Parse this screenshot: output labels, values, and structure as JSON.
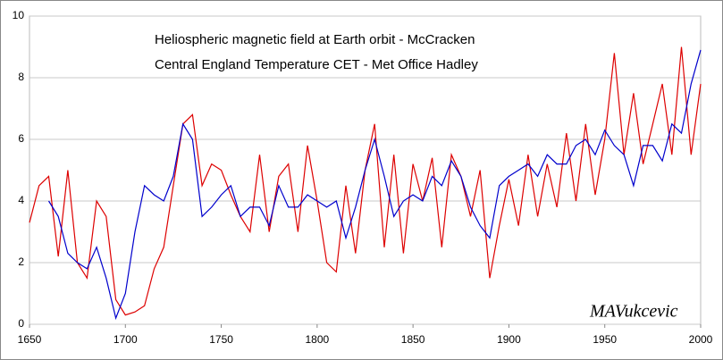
{
  "chart_data": {
    "type": "line",
    "annotations": [
      "Heliospheric magnetic  field at Earth orbit - McCracken",
      "Central England Temperature  CET - Met Office Hadley",
      "MAVukcevic"
    ],
    "x": [
      1650,
      1655,
      1660,
      1665,
      1670,
      1675,
      1680,
      1685,
      1690,
      1695,
      1700,
      1705,
      1710,
      1715,
      1720,
      1725,
      1730,
      1735,
      1740,
      1745,
      1750,
      1755,
      1760,
      1765,
      1770,
      1775,
      1780,
      1785,
      1790,
      1795,
      1800,
      1805,
      1810,
      1815,
      1820,
      1825,
      1830,
      1835,
      1840,
      1845,
      1850,
      1855,
      1860,
      1865,
      1870,
      1875,
      1880,
      1885,
      1890,
      1895,
      1900,
      1905,
      1910,
      1915,
      1920,
      1925,
      1930,
      1935,
      1940,
      1945,
      1950,
      1955,
      1960,
      1965,
      1970,
      1975,
      1980,
      1985,
      1990,
      1995,
      2000
    ],
    "series": [
      {
        "name": "Heliospheric magnetic  field at Earth orbit - McCracken",
        "color": "#dd0000",
        "values": [
          3.3,
          4.5,
          4.8,
          2.2,
          5.0,
          2.0,
          1.5,
          4.0,
          3.5,
          0.8,
          0.3,
          0.4,
          0.6,
          1.8,
          2.5,
          4.5,
          6.5,
          6.8,
          4.5,
          5.2,
          5.0,
          4.2,
          3.5,
          3.0,
          5.5,
          3.0,
          4.8,
          5.2,
          3.0,
          5.8,
          4.0,
          2.0,
          1.7,
          4.5,
          2.3,
          5.0,
          6.5,
          2.5,
          5.5,
          2.3,
          5.2,
          4.0,
          5.4,
          2.5,
          5.5,
          4.8,
          3.5,
          5.0,
          1.5,
          3.2,
          4.7,
          3.2,
          5.5,
          3.5,
          5.2,
          3.8,
          6.2,
          4.0,
          6.5,
          4.2,
          6.0,
          8.8,
          5.5,
          7.5,
          5.2,
          6.5,
          7.8,
          5.5,
          9.0,
          5.5,
          7.8
        ]
      },
      {
        "name": "Central England Temperature  CET - Met Office Hadley",
        "color": "#0000cc",
        "values": [
          null,
          null,
          4.0,
          3.5,
          2.3,
          2.0,
          1.8,
          2.5,
          1.5,
          0.2,
          1.0,
          3.0,
          4.5,
          4.2,
          4.0,
          4.8,
          6.5,
          6.0,
          3.5,
          3.8,
          4.2,
          4.5,
          3.5,
          3.8,
          3.8,
          3.2,
          4.5,
          3.8,
          3.8,
          4.2,
          4.0,
          3.8,
          4.0,
          2.8,
          3.8,
          5.0,
          6.0,
          4.8,
          3.5,
          4.0,
          4.2,
          4.0,
          4.8,
          4.5,
          5.3,
          4.8,
          3.8,
          3.2,
          2.8,
          4.5,
          4.8,
          5.0,
          5.2,
          4.8,
          5.5,
          5.2,
          5.2,
          5.8,
          6.0,
          5.5,
          6.3,
          5.8,
          5.5,
          4.5,
          5.8,
          5.8,
          5.3,
          6.5,
          6.2,
          7.8,
          8.9
        ]
      }
    ],
    "xlim": [
      1650,
      2000
    ],
    "xticks": [
      1650,
      1700,
      1750,
      1800,
      1850,
      1900,
      1950,
      2000
    ],
    "ylim": [
      0,
      10
    ],
    "yticks": [
      0,
      2,
      4,
      6,
      8,
      10
    ],
    "grid": true
  }
}
